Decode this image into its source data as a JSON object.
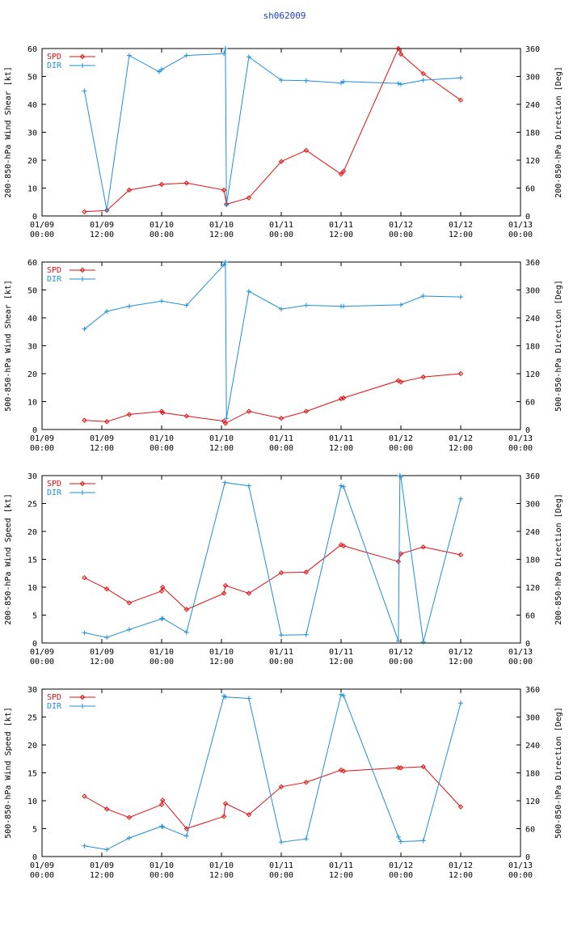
{
  "title": "sh062009",
  "colors": {
    "spd": "#e01010",
    "dir": "#1e8fd6",
    "title": "#1a3cc8"
  },
  "x_ticks": [
    {
      "d": "01/09",
      "t": "00:00"
    },
    {
      "d": "01/09",
      "t": "12:00"
    },
    {
      "d": "01/10",
      "t": "00:00"
    },
    {
      "d": "01/10",
      "t": "12:00"
    },
    {
      "d": "01/11",
      "t": "00:00"
    },
    {
      "d": "01/11",
      "t": "12:00"
    },
    {
      "d": "01/12",
      "t": "00:00"
    },
    {
      "d": "01/12",
      "t": "12:00"
    },
    {
      "d": "01/13",
      "t": "00:00"
    }
  ],
  "chart_data": [
    {
      "type": "line",
      "ylabel": "200-850-hPa Wind Shear [kt]",
      "y2label": "200-850-hPa Direction [Deg]",
      "ylim": [
        0,
        60
      ],
      "yticks": [
        0,
        10,
        20,
        30,
        40,
        50,
        60
      ],
      "y2lim": [
        0,
        360
      ],
      "y2ticks": [
        0,
        60,
        120,
        180,
        240,
        300,
        360
      ],
      "xlim_hours": [
        0,
        96
      ],
      "series": [
        {
          "name": "SPD",
          "axis": "left",
          "x": [
            8.5,
            13,
            17.5,
            24,
            29,
            36.5,
            37,
            41.5,
            48,
            53,
            60,
            60.5,
            71.5,
            72,
            76.5,
            84
          ],
          "values": [
            1.5,
            2,
            9.3,
            11.3,
            11.8,
            9.3,
            4.2,
            6.5,
            19.5,
            23.5,
            15,
            16,
            60,
            58,
            51,
            41.5
          ]
        },
        {
          "name": "DIR",
          "axis": "right",
          "x": [
            8.5,
            13,
            17.5,
            23.5,
            24,
            29,
            36.5,
            36.8,
            37,
            41.5,
            48,
            53,
            60,
            60.5,
            71.5,
            72,
            76.5,
            84
          ],
          "values": [
            269,
            12,
            345,
            310,
            315,
            345,
            349,
            360,
            24,
            342,
            292,
            291,
            286,
            289,
            285,
            283,
            292,
            297
          ]
        }
      ]
    },
    {
      "type": "line",
      "ylabel": "500-850-hPa Wind Shear [kt]",
      "y2label": "500-850-hPa Direction [Deg]",
      "ylim": [
        0,
        60
      ],
      "yticks": [
        0,
        10,
        20,
        30,
        40,
        50,
        60
      ],
      "y2lim": [
        0,
        360
      ],
      "y2ticks": [
        0,
        60,
        120,
        180,
        240,
        300,
        360
      ],
      "xlim_hours": [
        0,
        96
      ],
      "series": [
        {
          "name": "SPD",
          "axis": "left",
          "x": [
            8.5,
            13,
            17.5,
            24,
            24.2,
            29,
            36.5,
            36.8,
            41.5,
            48,
            53,
            60,
            60.5,
            71.5,
            72,
            76.5,
            84
          ],
          "values": [
            3.3,
            2.8,
            5.4,
            6.5,
            6,
            4.8,
            3,
            2.2,
            6.5,
            4,
            6.5,
            11,
            11.3,
            17.5,
            17,
            18.8,
            20
          ]
        },
        {
          "name": "DIR",
          "axis": "right",
          "x": [
            8.5,
            13,
            17.5,
            24,
            29,
            36.5,
            36.8,
            37,
            41.5,
            48,
            53,
            60,
            60.5,
            72,
            76.5,
            84
          ],
          "values": [
            216,
            254,
            265,
            276,
            267,
            354,
            360,
            24,
            297,
            259,
            267,
            265,
            265,
            268,
            287,
            285
          ]
        }
      ]
    },
    {
      "type": "line",
      "ylabel": "200-850-hPa Wind Speed [kt]",
      "y2label": "200-850-hPa Direction [Deg]",
      "ylim": [
        0,
        30
      ],
      "yticks": [
        0,
        5,
        10,
        15,
        20,
        25,
        30
      ],
      "y2lim": [
        0,
        360
      ],
      "y2ticks": [
        0,
        60,
        120,
        180,
        240,
        300,
        360
      ],
      "xlim_hours": [
        0,
        96
      ],
      "series": [
        {
          "name": "SPD",
          "axis": "left",
          "x": [
            8.5,
            13,
            17.5,
            24,
            24.2,
            29,
            36.5,
            36.8,
            41.5,
            48,
            53,
            60,
            60.5,
            71.5,
            72,
            76.5,
            84
          ],
          "values": [
            11.7,
            9.7,
            7.2,
            9.3,
            10,
            6,
            8.9,
            10.3,
            8.9,
            12.6,
            12.7,
            17.6,
            17.4,
            14.6,
            16,
            17.2,
            15.8
          ]
        },
        {
          "name": "DIR",
          "axis": "right",
          "x": [
            8.5,
            13,
            17.5,
            24,
            24.2,
            29,
            36.7,
            41.5,
            48,
            53,
            60,
            60.5,
            71.5,
            71.8,
            72,
            76.5,
            84
          ],
          "values": [
            22,
            12,
            29,
            52,
            53,
            23,
            345,
            338,
            17,
            18,
            338,
            336,
            4,
            360,
            357,
            2,
            310
          ]
        }
      ]
    },
    {
      "type": "line",
      "ylabel": "500-850-hPa Wind Speed [kt]",
      "y2label": "500-850-hPa Direction [Deg]",
      "ylim": [
        0,
        30
      ],
      "yticks": [
        0,
        5,
        10,
        15,
        20,
        25,
        30
      ],
      "y2lim": [
        0,
        360
      ],
      "y2ticks": [
        0,
        60,
        120,
        180,
        240,
        300,
        360
      ],
      "xlim_hours": [
        0,
        96
      ],
      "series": [
        {
          "name": "SPD",
          "axis": "left",
          "x": [
            8.5,
            13,
            17.5,
            24,
            24.2,
            29,
            36.5,
            36.8,
            41.5,
            48,
            53,
            60,
            60.5,
            71.5,
            72,
            76.5,
            84
          ],
          "values": [
            10.8,
            8.5,
            7,
            9.3,
            10.1,
            5,
            7.2,
            9.5,
            7.5,
            12.5,
            13.3,
            15.5,
            15.3,
            15.9,
            15.9,
            16.1,
            8.9
          ]
        },
        {
          "name": "DIR",
          "axis": "right",
          "x": [
            8.5,
            13,
            17.5,
            24,
            24.2,
            29,
            36.5,
            36.8,
            41.5,
            48,
            53,
            60,
            60.5,
            71.5,
            72,
            76.5,
            84
          ],
          "values": [
            23,
            15,
            40,
            65,
            64,
            44,
            345,
            343,
            340,
            31,
            38,
            348,
            346,
            42,
            32,
            34,
            330
          ]
        }
      ]
    }
  ]
}
